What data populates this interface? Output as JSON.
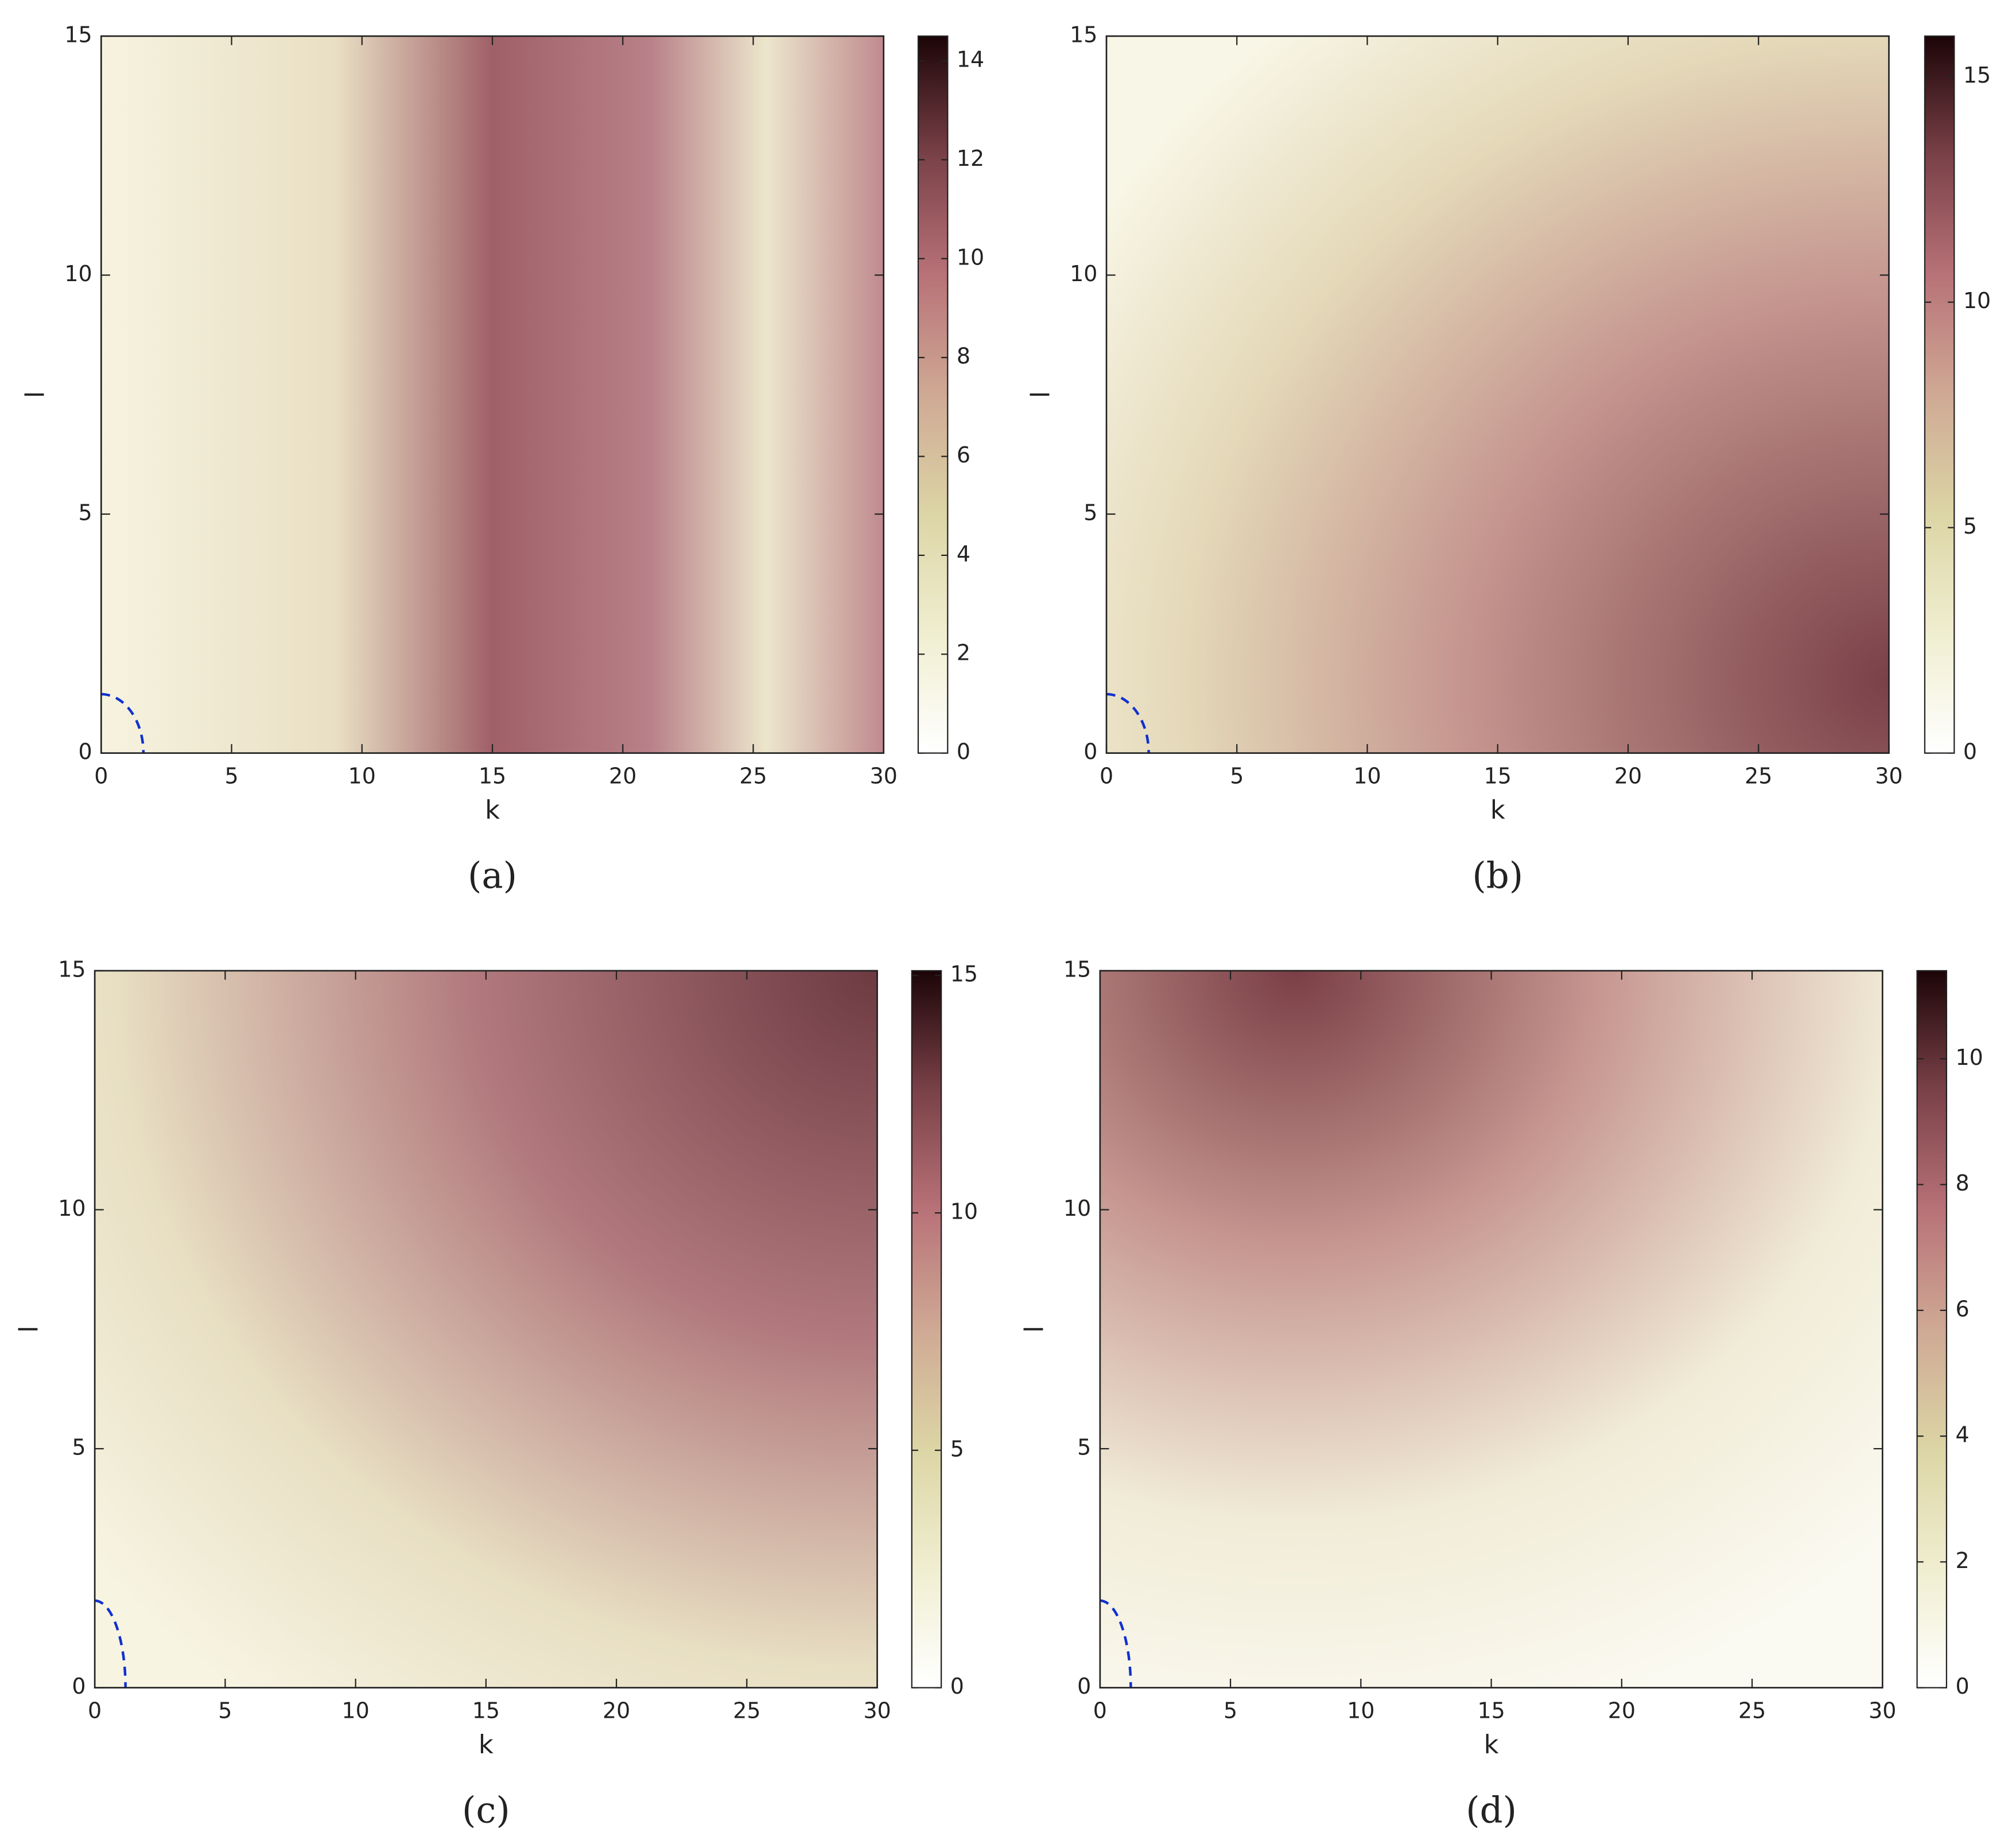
{
  "chart_data": [
    {
      "type": "heatmap",
      "caption": "(a)",
      "xlabel": "k",
      "ylabel": "l",
      "xlim": [
        0,
        30
      ],
      "ylim": [
        0,
        15
      ],
      "xticks": [
        0,
        5,
        10,
        15,
        20,
        25,
        30
      ],
      "yticks": [
        0,
        5,
        10,
        15
      ],
      "colorbar_lim": [
        0,
        14.5
      ],
      "colorbar_ticks": [
        0,
        2,
        4,
        6,
        8,
        10,
        12,
        14
      ],
      "colormap": [
        "#ffffff",
        "#f0eed0",
        "#dcd5a5",
        "#cfa994",
        "#b87278",
        "#7a4148",
        "#1c0507"
      ]
    },
    {
      "type": "heatmap",
      "caption": "(b)",
      "xlabel": "k",
      "ylabel": "l",
      "xlim": [
        0,
        30
      ],
      "ylim": [
        0,
        15
      ],
      "xticks": [
        0,
        5,
        10,
        15,
        20,
        25,
        30
      ],
      "yticks": [
        0,
        5,
        10,
        15
      ],
      "colorbar_lim": [
        0,
        15.9
      ],
      "colorbar_ticks": [
        0,
        5,
        10,
        15
      ],
      "colormap": [
        "#ffffff",
        "#f0eed0",
        "#dcd5a5",
        "#cfa994",
        "#b87278",
        "#7a4148",
        "#1c0507"
      ]
    },
    {
      "type": "heatmap",
      "caption": "(c)",
      "xlabel": "k",
      "ylabel": "l",
      "xlim": [
        0,
        30
      ],
      "ylim": [
        0,
        15
      ],
      "xticks": [
        0,
        5,
        10,
        15,
        20,
        25,
        30
      ],
      "yticks": [
        0,
        5,
        10,
        15
      ],
      "colorbar_lim": [
        0,
        15.1
      ],
      "colorbar_ticks": [
        0,
        5,
        10,
        15
      ],
      "colormap": [
        "#ffffff",
        "#f0eed0",
        "#dcd5a5",
        "#cfa994",
        "#b87278",
        "#7a4148",
        "#1c0507"
      ]
    },
    {
      "type": "heatmap",
      "caption": "(d)",
      "xlabel": "k",
      "ylabel": "l",
      "xlim": [
        0,
        30
      ],
      "ylim": [
        0,
        15
      ],
      "xticks": [
        0,
        5,
        10,
        15,
        20,
        25,
        30
      ],
      "yticks": [
        0,
        5,
        10,
        15
      ],
      "colorbar_lim": [
        0,
        11.4
      ],
      "colorbar_ticks": [
        0,
        2,
        4,
        6,
        8,
        10
      ],
      "colormap": [
        "#ffffff",
        "#f0eed0",
        "#dcd5a5",
        "#cfa994",
        "#b87278",
        "#7a4148",
        "#1c0507"
      ]
    }
  ]
}
